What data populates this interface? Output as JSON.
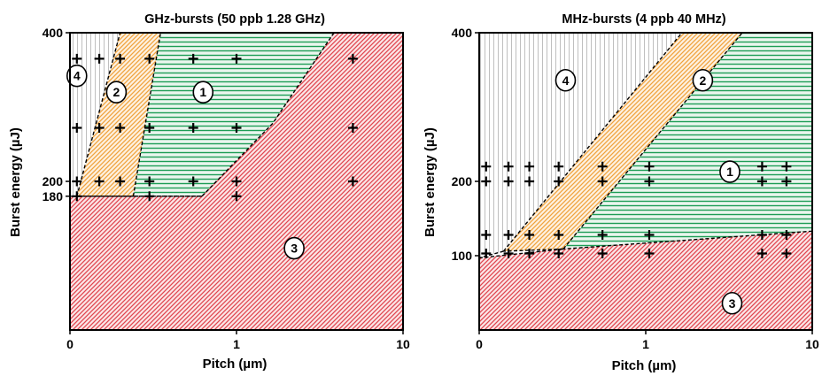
{
  "colors": {
    "green": "#1d9d55",
    "orange": "#f0a23c",
    "red": "#e0454e",
    "grey": "#bfbfbf",
    "axis": "#000000"
  },
  "chart_data": [
    {
      "type": "scatter",
      "title": "GHz-bursts (50 ppb 1.28 GHz)",
      "xlabel": "Pitch (µm)",
      "ylabel": "Burst energy (µJ)",
      "xscale": "log",
      "xlim": [
        0.1,
        10
      ],
      "ylim": [
        0,
        400
      ],
      "x_ticks": [
        "0",
        "1",
        "10"
      ],
      "y_ticks": [
        "400",
        "200",
        "180"
      ],
      "grid": false,
      "points": [
        {
          "x": 0.11,
          "y": 365
        },
        {
          "x": 0.15,
          "y": 365
        },
        {
          "x": 0.2,
          "y": 365
        },
        {
          "x": 0.3,
          "y": 365
        },
        {
          "x": 0.55,
          "y": 365
        },
        {
          "x": 1.0,
          "y": 365
        },
        {
          "x": 5.0,
          "y": 365
        },
        {
          "x": 0.11,
          "y": 272
        },
        {
          "x": 0.15,
          "y": 272
        },
        {
          "x": 0.2,
          "y": 272
        },
        {
          "x": 0.3,
          "y": 272
        },
        {
          "x": 0.55,
          "y": 272
        },
        {
          "x": 1.0,
          "y": 272
        },
        {
          "x": 5.0,
          "y": 272
        },
        {
          "x": 0.11,
          "y": 200
        },
        {
          "x": 0.15,
          "y": 200
        },
        {
          "x": 0.2,
          "y": 200
        },
        {
          "x": 0.3,
          "y": 200
        },
        {
          "x": 0.55,
          "y": 200
        },
        {
          "x": 1.0,
          "y": 200
        },
        {
          "x": 5.0,
          "y": 200
        },
        {
          "x": 0.11,
          "y": 180
        },
        {
          "x": 0.3,
          "y": 180
        },
        {
          "x": 1.0,
          "y": 180
        }
      ],
      "regions": [
        {
          "label": "1",
          "color": "green",
          "hatch": "horizontal",
          "polygon": [
            [
              0.35,
              400
            ],
            [
              3.85,
              400
            ],
            [
              1.65,
              278
            ],
            [
              0.62,
              180
            ],
            [
              0.24,
              180
            ]
          ]
        },
        {
          "label": "2",
          "color": "orange",
          "hatch": "diagonal",
          "polygon": [
            [
              0.2,
              400
            ],
            [
              0.35,
              400
            ],
            [
              0.24,
              180
            ],
            [
              0.11,
              180
            ]
          ]
        },
        {
          "label": "3",
          "color": "red",
          "hatch": "diagonal",
          "polygon": [
            [
              0.1,
              180
            ],
            [
              0.62,
              180
            ],
            [
              1.65,
              278
            ],
            [
              3.85,
              400
            ],
            [
              10,
              400
            ],
            [
              10,
              0
            ],
            [
              0.1,
              0
            ]
          ]
        },
        {
          "label": "4",
          "color": "grey",
          "hatch": "vertical",
          "polygon": [
            [
              0.1,
              400
            ],
            [
              0.2,
              400
            ],
            [
              0.11,
              180
            ],
            [
              0.1,
              180
            ]
          ]
        }
      ],
      "label_positions": [
        {
          "label": "4",
          "x": 0.11,
          "y": 342
        },
        {
          "label": "2",
          "x": 0.19,
          "y": 320
        },
        {
          "label": "1",
          "x": 0.63,
          "y": 320
        },
        {
          "label": "3",
          "x": 2.22,
          "y": 110
        }
      ]
    },
    {
      "type": "scatter",
      "title": "MHz-bursts (4 ppb 40 MHz)",
      "xlabel": "Pitch (µm)",
      "ylabel": "Burst energy (µJ)",
      "xscale": "log",
      "xlim": [
        0.1,
        10
      ],
      "ylim": [
        0,
        400
      ],
      "x_ticks": [
        "0",
        "1",
        "10"
      ],
      "y_ticks": [
        "400",
        "200",
        "100"
      ],
      "grid": false,
      "points": [
        {
          "x": 0.11,
          "y": 220
        },
        {
          "x": 0.15,
          "y": 220
        },
        {
          "x": 0.2,
          "y": 220
        },
        {
          "x": 0.3,
          "y": 220
        },
        {
          "x": 0.55,
          "y": 220
        },
        {
          "x": 1.05,
          "y": 220
        },
        {
          "x": 5.0,
          "y": 220
        },
        {
          "x": 7.0,
          "y": 220
        },
        {
          "x": 0.11,
          "y": 200
        },
        {
          "x": 0.15,
          "y": 200
        },
        {
          "x": 0.2,
          "y": 200
        },
        {
          "x": 0.3,
          "y": 200
        },
        {
          "x": 0.55,
          "y": 200
        },
        {
          "x": 1.05,
          "y": 200
        },
        {
          "x": 5.0,
          "y": 200
        },
        {
          "x": 7.0,
          "y": 200
        },
        {
          "x": 0.11,
          "y": 128
        },
        {
          "x": 0.15,
          "y": 128
        },
        {
          "x": 0.2,
          "y": 128
        },
        {
          "x": 0.3,
          "y": 128
        },
        {
          "x": 0.55,
          "y": 128
        },
        {
          "x": 1.05,
          "y": 128
        },
        {
          "x": 5.0,
          "y": 128
        },
        {
          "x": 7.0,
          "y": 128
        },
        {
          "x": 0.11,
          "y": 103
        },
        {
          "x": 0.15,
          "y": 103
        },
        {
          "x": 0.2,
          "y": 103
        },
        {
          "x": 0.3,
          "y": 103
        },
        {
          "x": 0.55,
          "y": 103
        },
        {
          "x": 1.05,
          "y": 103
        },
        {
          "x": 5.0,
          "y": 103
        },
        {
          "x": 7.0,
          "y": 103
        }
      ],
      "regions": [
        {
          "label": "1",
          "color": "green",
          "hatch": "horizontal",
          "polygon": [
            [
              3.8,
              400
            ],
            [
              10,
              400
            ],
            [
              10,
              133
            ],
            [
              0.32,
              109
            ]
          ]
        },
        {
          "label": "2",
          "color": "orange",
          "hatch": "diagonal",
          "polygon": [
            [
              1.65,
              400
            ],
            [
              3.8,
              400
            ],
            [
              0.32,
              109
            ],
            [
              0.14,
              106
            ]
          ]
        },
        {
          "label": "3",
          "color": "red",
          "hatch": "diagonal",
          "polygon": [
            [
              0.1,
              97
            ],
            [
              0.32,
              109
            ],
            [
              10,
              133
            ],
            [
              10,
              0
            ],
            [
              0.1,
              0
            ]
          ]
        },
        {
          "label": "4",
          "color": "grey",
          "hatch": "vertical",
          "polygon": [
            [
              0.1,
              400
            ],
            [
              1.65,
              400
            ],
            [
              0.14,
              106
            ],
            [
              0.1,
              97
            ]
          ]
        }
      ],
      "label_positions": [
        {
          "label": "4",
          "x": 0.33,
          "y": 336
        },
        {
          "label": "2",
          "x": 2.2,
          "y": 336
        },
        {
          "label": "1",
          "x": 3.2,
          "y": 213
        },
        {
          "label": "3",
          "x": 3.3,
          "y": 36
        }
      ]
    }
  ]
}
